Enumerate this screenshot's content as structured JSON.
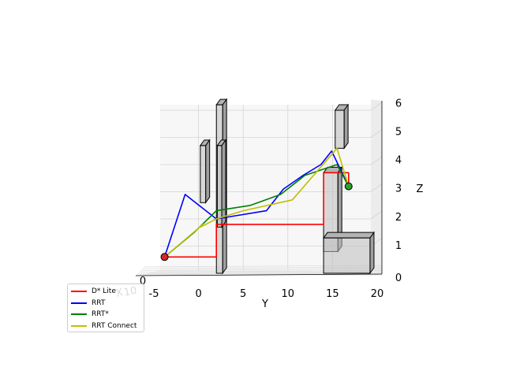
{
  "chart_data": {
    "type": "line",
    "projection": "3d",
    "axes": {
      "x": {
        "label": "X",
        "ticks": [
          "0"
        ],
        "offset_label": "10",
        "range_note": "axis seen edge-on"
      },
      "y": {
        "label": "Y",
        "ticks": [
          "-5",
          "0",
          "5",
          "10",
          "15",
          "20"
        ],
        "range": [
          -5,
          20
        ]
      },
      "z": {
        "label": "Z",
        "ticks": [
          "0",
          "1",
          "2",
          "3",
          "4",
          "5",
          "6"
        ],
        "range": [
          0,
          6
        ]
      }
    },
    "grid": true,
    "legend_position": "lower-left",
    "start": {
      "y": -3.8,
      "z": 0.6,
      "color": "#d62728"
    },
    "goal": {
      "y": 16.8,
      "z": 3.2,
      "color": "#2ca02c"
    },
    "obstacles": [
      {
        "y": [
          2.0,
          2.7
        ],
        "z": [
          0,
          6.2
        ]
      },
      {
        "y": [
          0.2,
          0.8
        ],
        "z": [
          2.6,
          4.7
        ]
      },
      {
        "y": [
          2.1,
          2.6
        ],
        "z": [
          1.7,
          4.7
        ]
      },
      {
        "y": [
          14.0,
          15.6
        ],
        "z": [
          0.8,
          3.7
        ]
      },
      {
        "y": [
          14.0,
          19.2
        ],
        "z": [
          0,
          1.3
        ]
      },
      {
        "y": [
          15.3,
          16.3
        ],
        "z": [
          4.6,
          6.0
        ]
      }
    ],
    "series": [
      {
        "name": "D* Lite",
        "color": "#ff0000",
        "points": [
          [
            -3.8,
            0.6
          ],
          [
            2.0,
            0.6
          ],
          [
            2.0,
            1.8
          ],
          [
            14.0,
            1.8
          ],
          [
            14.0,
            3.7
          ],
          [
            16.8,
            3.7
          ],
          [
            16.8,
            3.2
          ]
        ]
      },
      {
        "name": "RRT",
        "color": "#0000ff",
        "points": [
          [
            -3.8,
            0.6
          ],
          [
            -1.5,
            2.9
          ],
          [
            2.0,
            2.0
          ],
          [
            7.6,
            2.3
          ],
          [
            9.5,
            3.1
          ],
          [
            11.7,
            3.6
          ],
          [
            13.7,
            4.0
          ],
          [
            14.9,
            4.5
          ],
          [
            16.8,
            3.2
          ]
        ]
      },
      {
        "name": "RRT*",
        "color": "#008000",
        "points": [
          [
            -3.8,
            0.6
          ],
          [
            -0.5,
            1.5
          ],
          [
            2.0,
            2.3
          ],
          [
            5.8,
            2.5
          ],
          [
            9.2,
            2.9
          ],
          [
            11.9,
            3.6
          ],
          [
            15.5,
            4.0
          ],
          [
            16.8,
            3.2
          ]
        ]
      },
      {
        "name": "RRT Connect",
        "color": "#bfbf00",
        "points": [
          [
            -3.8,
            0.6
          ],
          [
            0.5,
            1.8
          ],
          [
            0.2,
            1.7
          ],
          [
            2.0,
            2.0
          ],
          [
            5.0,
            2.3
          ],
          [
            10.5,
            2.7
          ],
          [
            15.5,
            4.6
          ],
          [
            16.8,
            3.2
          ]
        ]
      }
    ]
  }
}
